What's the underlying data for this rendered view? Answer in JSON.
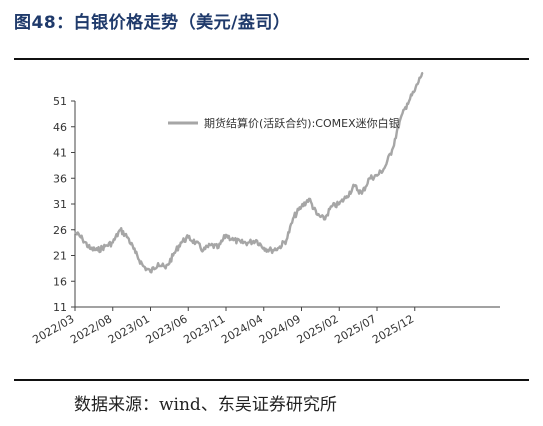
{
  "header": {
    "title": "图48：白银价格走势（美元/盎司）"
  },
  "footer": {
    "source": "数据来源：wind、东吴证券研究所"
  },
  "chart_data": {
    "type": "line",
    "title": "图48：白银价格走势（美元/盎司）",
    "xlabel": "",
    "ylabel": "",
    "ylim": [
      11,
      51
    ],
    "yticks": [
      11,
      16,
      21,
      26,
      31,
      36,
      41,
      46,
      51
    ],
    "xticks": [
      "2022/03",
      "2022/08",
      "2023/01",
      "2023/06",
      "2023/11",
      "2024/04",
      "2024/09",
      "2025/02",
      "2025/07",
      "2025/12"
    ],
    "grid": false,
    "legend": "top-right",
    "series": [
      {
        "name": "期货结算价(活跃合约):COMEX迷你白银",
        "color": "#a6a6a6",
        "x": [
          "2022/03",
          "2022/04",
          "2022/05",
          "2022/06",
          "2022/07",
          "2022/08",
          "2022/09",
          "2022/10",
          "2022/11",
          "2022/12",
          "2023/01",
          "2023/02",
          "2023/03",
          "2023/04",
          "2023/05",
          "2023/06",
          "2023/07",
          "2023/08",
          "2023/09",
          "2023/10",
          "2023/11",
          "2023/12",
          "2024/01",
          "2024/02",
          "2024/03",
          "2024/04",
          "2024/05",
          "2024/06",
          "2024/07",
          "2024/08",
          "2024/09",
          "2024/10",
          "2024/11",
          "2024/12",
          "2025/01",
          "2025/02",
          "2025/03",
          "2025/04",
          "2025/05",
          "2025/06",
          "2025/07",
          "2025/08",
          "2025/09",
          "2025/10",
          "2025/11",
          "2025/12",
          "2026/01"
        ],
        "values": [
          25.5,
          24.2,
          22.3,
          22.0,
          22.8,
          23.5,
          26.0,
          24.5,
          21.5,
          19.0,
          17.8,
          19.5,
          18.5,
          21.0,
          23.5,
          24.5,
          23.5,
          22.0,
          23.0,
          22.5,
          25.0,
          24.0,
          23.5,
          23.5,
          24.0,
          22.5,
          22.0,
          22.5,
          24.0,
          28.5,
          30.5,
          32.0,
          29.0,
          28.0,
          30.5,
          31.0,
          32.5,
          34.5,
          33.0,
          36.0,
          36.5,
          38.0,
          41.5,
          47.0,
          50.5,
          53.0,
          56.5
        ]
      }
    ]
  }
}
